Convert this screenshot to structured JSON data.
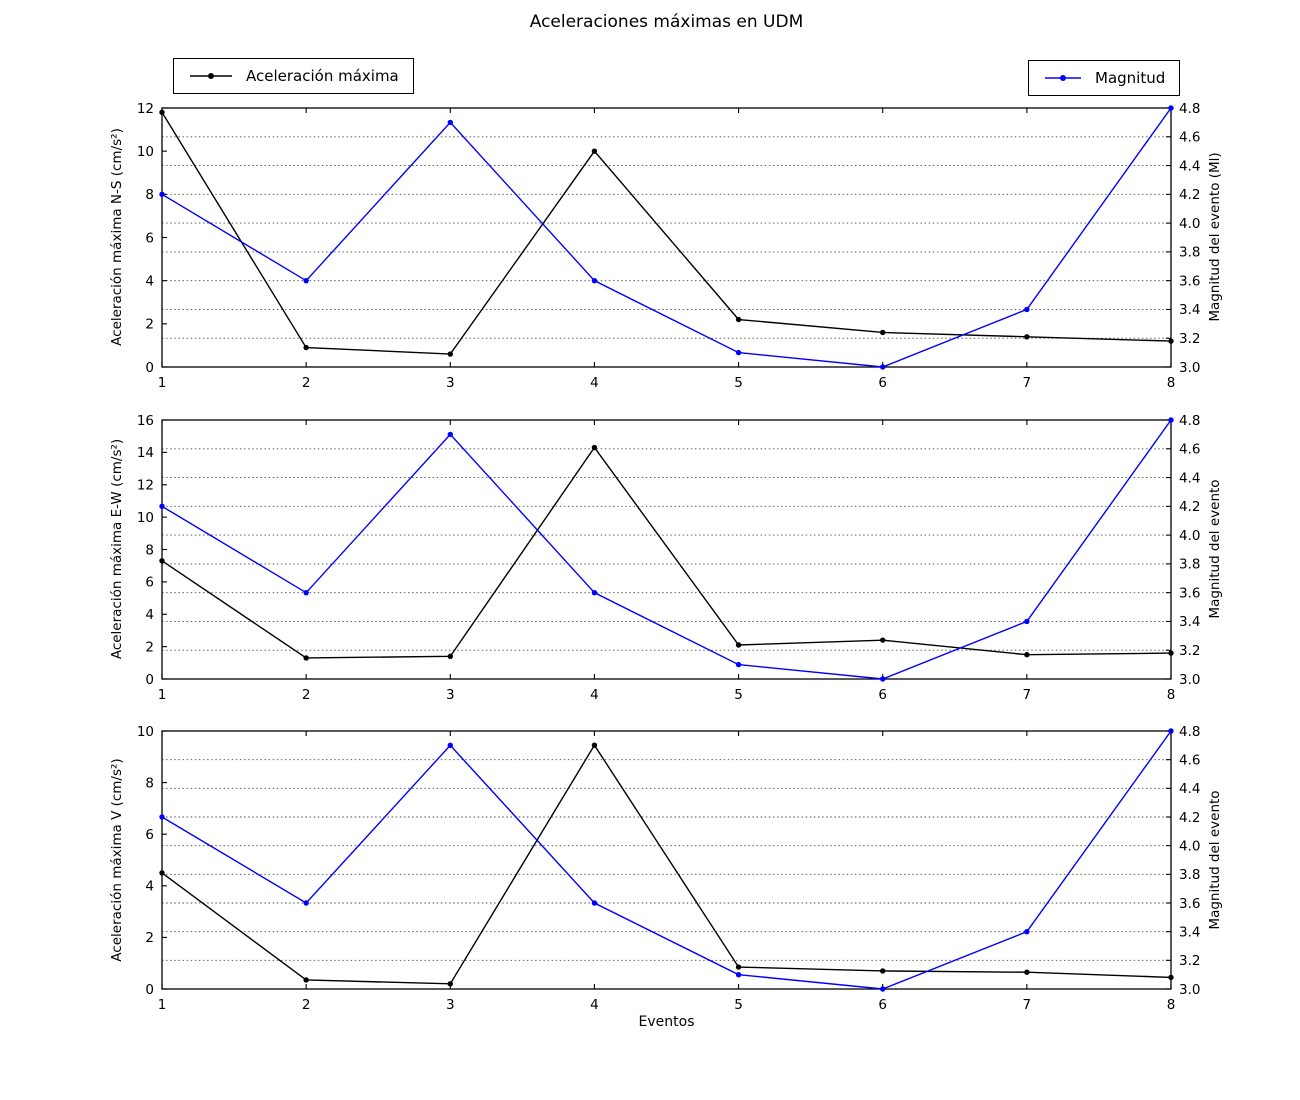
{
  "figure": {
    "title": "Aceleraciones máximas en UDM",
    "xlabel": "Eventos",
    "background_color": "#ffffff",
    "axes_color": "#000000",
    "grid_color": "#4d4d4d"
  },
  "legends": [
    {
      "label": "Aceleración máxima",
      "color": "#000000",
      "marker": "dot"
    },
    {
      "label": "Magnitud",
      "color": "#0000ff",
      "marker": "dot"
    }
  ],
  "chart_data": [
    {
      "type": "line",
      "x": [
        1,
        2,
        3,
        4,
        5,
        6,
        7,
        8
      ],
      "xlim": [
        1,
        8
      ],
      "xticks": [
        "1",
        "2",
        "3",
        "4",
        "5",
        "6",
        "7",
        "8"
      ],
      "ylabel_left": "Aceleración máxima N-S (cm/s²)",
      "ylim_left": [
        0,
        12
      ],
      "yticks_left": [
        "0",
        "2",
        "4",
        "6",
        "8",
        "10",
        "12"
      ],
      "ylabel_right": "Magnitud del evento (Ml)",
      "ylim_right": [
        3.0,
        4.8
      ],
      "yticks_right": [
        "3.0",
        "3.2",
        "3.4",
        "3.6",
        "3.8",
        "4.0",
        "4.2",
        "4.4",
        "4.6",
        "4.8"
      ],
      "grid": "horizontal dotted lines at right-axis ticks",
      "legend_position": "figure top left and top right",
      "series": [
        {
          "name": "Aceleración máxima",
          "axis": "left",
          "color": "#000000",
          "values": [
            11.8,
            0.9,
            0.6,
            10.0,
            2.2,
            1.6,
            1.4,
            1.2
          ]
        },
        {
          "name": "Magnitud",
          "axis": "right",
          "color": "#0000ff",
          "values": [
            4.2,
            3.6,
            4.7,
            3.6,
            3.1,
            3.0,
            3.4,
            4.8
          ]
        }
      ]
    },
    {
      "type": "line",
      "x": [
        1,
        2,
        3,
        4,
        5,
        6,
        7,
        8
      ],
      "xlim": [
        1,
        8
      ],
      "xticks": [
        "1",
        "2",
        "3",
        "4",
        "5",
        "6",
        "7",
        "8"
      ],
      "ylabel_left": "Aceleración máxima E-W (cm/s²)",
      "ylim_left": [
        0,
        16
      ],
      "yticks_left": [
        "0",
        "2",
        "4",
        "6",
        "8",
        "10",
        "12",
        "14",
        "16"
      ],
      "ylabel_right": "Magnitud del evento",
      "ylim_right": [
        3.0,
        4.8
      ],
      "yticks_right": [
        "3.0",
        "3.2",
        "3.4",
        "3.6",
        "3.8",
        "4.0",
        "4.2",
        "4.4",
        "4.6",
        "4.8"
      ],
      "grid": "horizontal dotted lines at right-axis ticks",
      "series": [
        {
          "name": "Aceleración máxima",
          "axis": "left",
          "color": "#000000",
          "values": [
            7.3,
            1.3,
            1.4,
            14.3,
            2.1,
            2.4,
            1.5,
            1.6
          ]
        },
        {
          "name": "Magnitud",
          "axis": "right",
          "color": "#0000ff",
          "values": [
            4.2,
            3.6,
            4.7,
            3.6,
            3.1,
            3.0,
            3.4,
            4.8
          ]
        }
      ]
    },
    {
      "type": "line",
      "x": [
        1,
        2,
        3,
        4,
        5,
        6,
        7,
        8
      ],
      "xlim": [
        1,
        8
      ],
      "xticks": [
        "1",
        "2",
        "3",
        "4",
        "5",
        "6",
        "7",
        "8"
      ],
      "ylabel_left": "Aceleración máxima V (cm/s²)",
      "ylim_left": [
        0,
        10
      ],
      "yticks_left": [
        "0",
        "2",
        "4",
        "6",
        "8",
        "10"
      ],
      "ylabel_right": "Magnitud del evento",
      "ylim_right": [
        3.0,
        4.8
      ],
      "yticks_right": [
        "3.0",
        "3.2",
        "3.4",
        "3.6",
        "3.8",
        "4.0",
        "4.2",
        "4.4",
        "4.6",
        "4.8"
      ],
      "grid": "horizontal dotted lines at right-axis ticks",
      "series": [
        {
          "name": "Aceleración máxima",
          "axis": "left",
          "color": "#000000",
          "values": [
            4.5,
            0.35,
            0.2,
            9.45,
            0.85,
            0.7,
            0.65,
            0.45
          ]
        },
        {
          "name": "Magnitud",
          "axis": "right",
          "color": "#0000ff",
          "values": [
            4.2,
            3.6,
            4.7,
            3.6,
            3.1,
            3.0,
            3.4,
            4.8
          ]
        }
      ]
    }
  ]
}
